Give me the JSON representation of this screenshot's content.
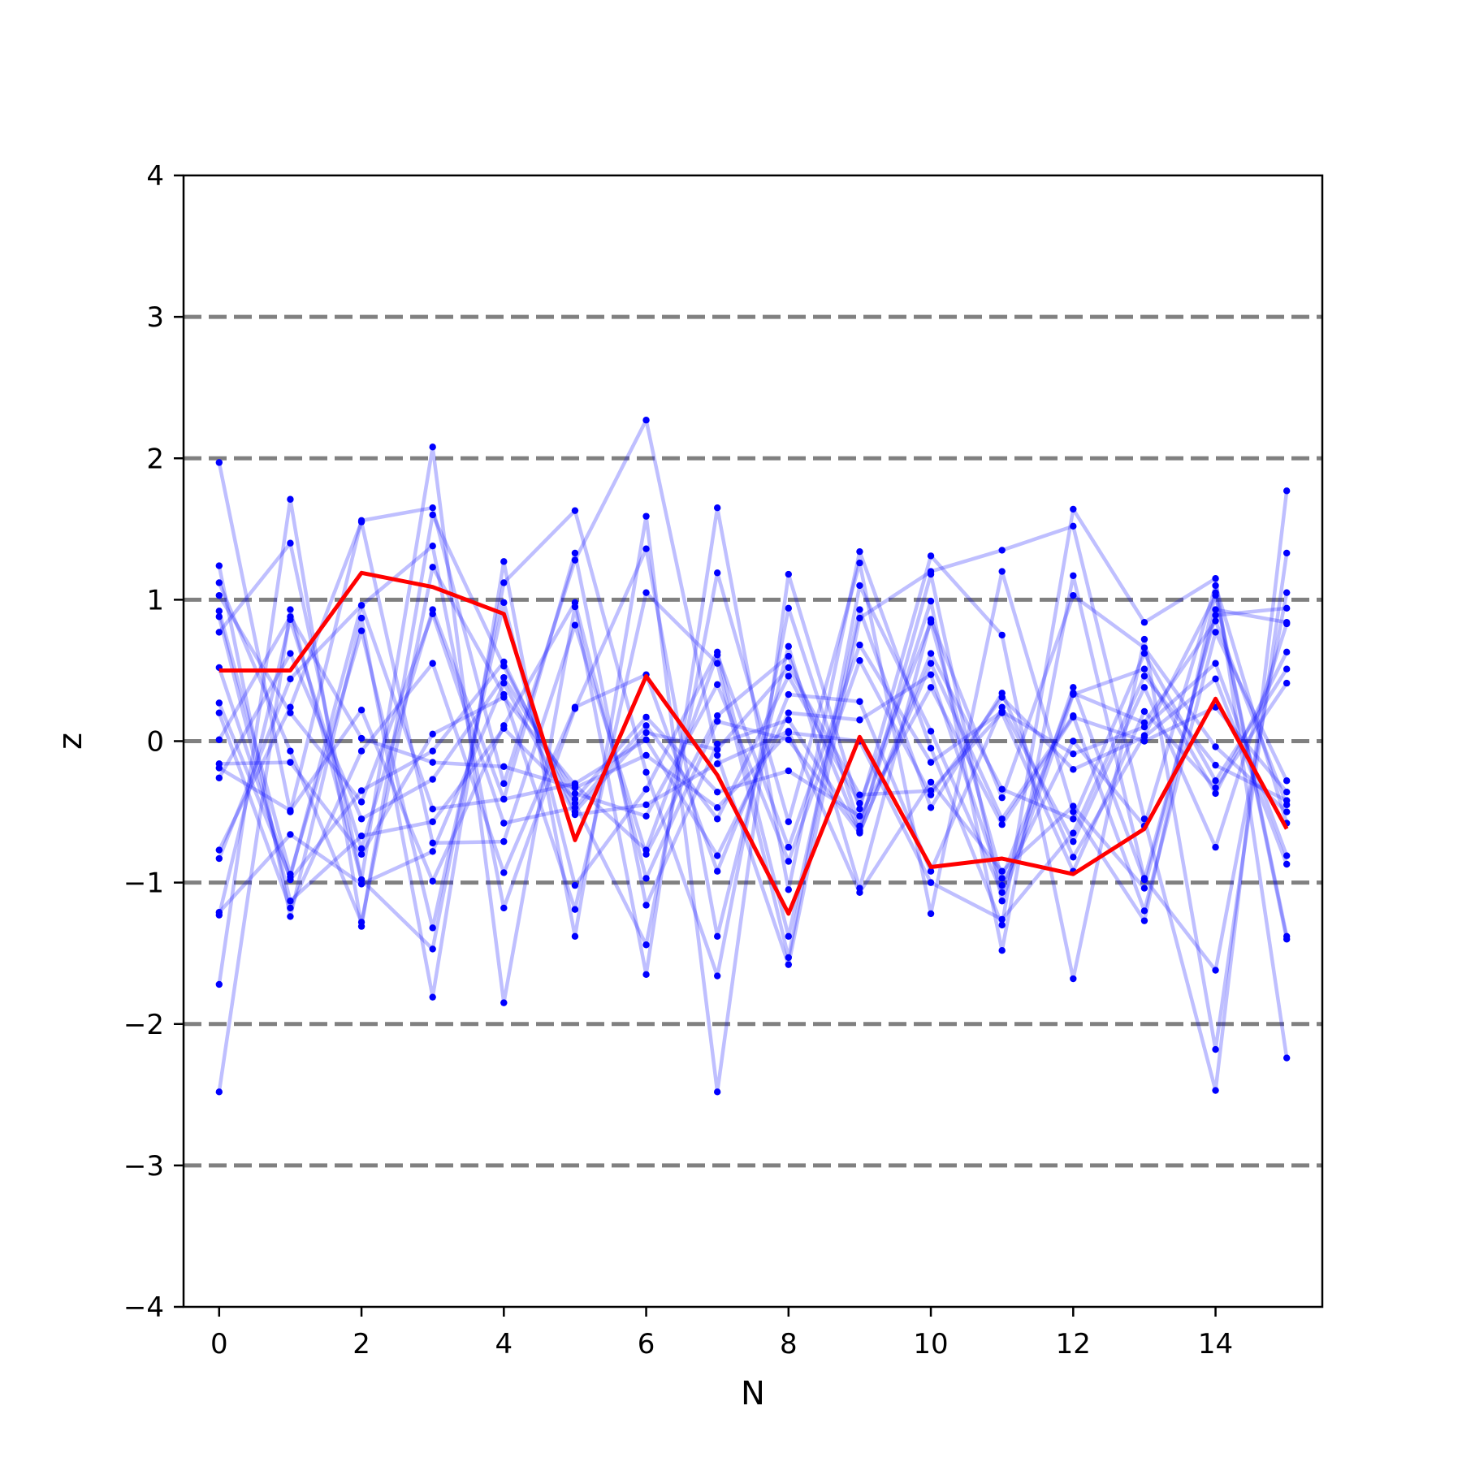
{
  "chart_data": {
    "type": "line",
    "title": "",
    "xlabel": "N",
    "ylabel": "z",
    "xlim": [
      -0.5,
      15.5
    ],
    "ylim": [
      -4,
      4
    ],
    "x_ticks": [
      0,
      2,
      4,
      6,
      8,
      10,
      12,
      14
    ],
    "x_tick_labels": [
      "0",
      "2",
      "4",
      "6",
      "8",
      "10",
      "12",
      "14"
    ],
    "y_ticks": [
      -4,
      -3,
      -2,
      -1,
      0,
      1,
      2,
      3,
      4
    ],
    "y_tick_labels": [
      "−4",
      "−3",
      "−2",
      "−1",
      "0",
      "1",
      "2",
      "3",
      "4"
    ],
    "grid": {
      "horizontal_dashed_at": [
        -3,
        -2,
        -1,
        0,
        1,
        2,
        3
      ],
      "color": "#808080"
    },
    "colors": {
      "samples": "#0000ff",
      "mean": "#ff0000",
      "reference": "#808080"
    },
    "x": [
      0,
      1,
      2,
      3,
      4,
      5,
      6,
      7,
      8,
      9,
      10,
      11,
      12,
      13,
      14,
      15
    ],
    "mean_line": {
      "color": "#ff0000",
      "values": [
        0.5,
        0.5,
        1.19,
        1.09,
        0.9,
        -0.7,
        0.46,
        -0.24,
        -1.22,
        0.03,
        -0.89,
        -0.83,
        -0.94,
        -0.62,
        0.3,
        -0.62
      ]
    },
    "sample_series": [
      {
        "values": [
          1.97,
          -0.5,
          1.56,
          1.65,
          -0.3,
          1.28,
          2.27,
          -0.1,
          -1.58,
          0.87,
          1.2,
          1.35,
          1.52,
          -0.55,
          -2.47,
          1.77
        ]
      },
      {
        "values": [
          -2.48,
          0.93,
          -0.98,
          2.08,
          -1.85,
          0.95,
          -1.65,
          1.65,
          -1.05,
          1.34,
          -0.05,
          -1.3,
          1.64,
          0.84,
          1.15,
          -2.24
        ]
      },
      {
        "values": [
          1.24,
          -1.24,
          0.87,
          -1.81,
          1.27,
          -1.38,
          1.59,
          -2.48,
          1.18,
          -0.48,
          1.31,
          0.75,
          -1.68,
          0.72,
          -2.18,
          1.33
        ]
      },
      {
        "values": [
          -1.72,
          1.71,
          -1.31,
          1.6,
          0.53,
          -0.44,
          -1.44,
          1.19,
          -0.57,
          1.26,
          -1.22,
          1.2,
          -0.5,
          -1.27,
          1.05,
          -1.38
        ]
      },
      {
        "values": [
          0.77,
          1.4,
          -0.98,
          -1.47,
          1.12,
          1.63,
          -0.22,
          -1.66,
          0.94,
          -0.6,
          0.99,
          -1.48,
          1.17,
          -0.97,
          -1.62,
          1.05
        ]
      },
      {
        "values": [
          0.27,
          -0.96,
          0.96,
          1.38,
          -1.18,
          0.23,
          1.36,
          -1.38,
          0.67,
          -1.04,
          0.86,
          -0.4,
          1.03,
          0.66,
          -0.04,
          -0.5
        ]
      },
      {
        "values": [
          1.12,
          -0.07,
          -1.28,
          1.23,
          0.33,
          -1.19,
          1.05,
          0.55,
          -1.53,
          1.1,
          0.07,
          -1.07,
          0.38,
          -0.98,
          0.89,
          0.94
        ]
      },
      {
        "values": [
          -1.23,
          0.86,
          -0.76,
          0.93,
          -0.41,
          1.33,
          -1.16,
          -0.02,
          0.15,
          -0.63,
          1.18,
          -1.13,
          0.33,
          0.51,
          -0.37,
          0.63
        ]
      },
      {
        "values": [
          0.92,
          -0.94,
          0.78,
          -1.32,
          0.98,
          -1.02,
          -0.34,
          0.63,
          -1.38,
          0.93,
          -0.47,
          0.34,
          -0.82,
          0.04,
          1.03,
          -1.4
        ]
      },
      {
        "values": [
          -0.77,
          0.24,
          1.55,
          -0.72,
          -0.71,
          0.82,
          -0.8,
          0.18,
          0.6,
          -0.64,
          0.55,
          -0.55,
          0.18,
          -1.2,
          0.77,
          -0.28
        ]
      },
      {
        "values": [
          0.2,
          -1.18,
          -0.07,
          0.55,
          -0.93,
          0.24,
          0.47,
          -0.92,
          0.33,
          0.28,
          -0.92,
          0.24,
          -0.71,
          0.38,
          -0.75,
          0.83
        ]
      },
      {
        "values": [
          -0.26,
          0.62,
          -0.55,
          -0.27,
          0.45,
          -0.37,
          -0.53,
          0.4,
          -0.85,
          0.57,
          -0.38,
          0.31,
          -0.2,
          0.03,
          0.44,
          -0.87
        ]
      },
      {
        "values": [
          1.03,
          0.2,
          -0.43,
          0.9,
          -0.58,
          -0.47,
          0.11,
          -0.55,
          0.46,
          -0.44,
          0.84,
          -0.97,
          0.34,
          0.13,
          0.85,
          -0.45
        ]
      },
      {
        "values": [
          -0.19,
          -0.49,
          0.22,
          -0.99,
          0.11,
          0.98,
          -0.97,
          0.14,
          0.01,
          -0.65,
          0.62,
          -0.34,
          -0.55,
          0.62,
          -0.28,
          0.51
        ]
      },
      {
        "values": [
          0.52,
          -0.98,
          -0.35,
          -0.07,
          0.56,
          -0.5,
          0.06,
          -0.06,
          0.52,
          -0.38,
          -0.35,
          0.2,
          -0.92,
          0.21,
          -0.33,
          0.41
        ]
      },
      {
        "values": [
          -0.83,
          0.44,
          0.96,
          -0.48,
          -0.41,
          -0.3,
          0.01,
          -0.81,
          0.2,
          0.15,
          0.47,
          -1.02,
          0.0,
          -0.6,
          1.1,
          -0.58
        ]
      },
      {
        "values": [
          -0.16,
          -0.15,
          -0.8,
          0.05,
          0.31,
          -0.31,
          -0.77,
          0.61,
          -0.75,
          0.68,
          -0.15,
          0.21,
          -0.09,
          0.1,
          0.55,
          -0.81
        ]
      },
      {
        "values": [
          0.88,
          -1.13,
          -0.67,
          -0.57,
          0.09,
          -0.41,
          0.17,
          -0.36,
          -0.21,
          -0.53,
          0.38,
          -0.59,
          0.17,
          0.0,
          0.24,
          -0.36
        ]
      },
      {
        "values": [
          -1.21,
          -0.66,
          -1.01,
          -0.78,
          0.41,
          -0.52,
          -0.45,
          -0.16,
          0.07,
          -1.07,
          -0.29,
          -0.92,
          -0.46,
          -1.04,
          0.93,
          0.84
        ]
      },
      {
        "values": [
          0.01,
          0.88,
          0.02,
          -0.15,
          -0.18,
          -0.33,
          -0.1,
          -0.47,
          0.06,
          0.0,
          -1.0,
          -1.26,
          -0.65,
          0.46,
          -0.17,
          -0.42
        ]
      }
    ]
  }
}
